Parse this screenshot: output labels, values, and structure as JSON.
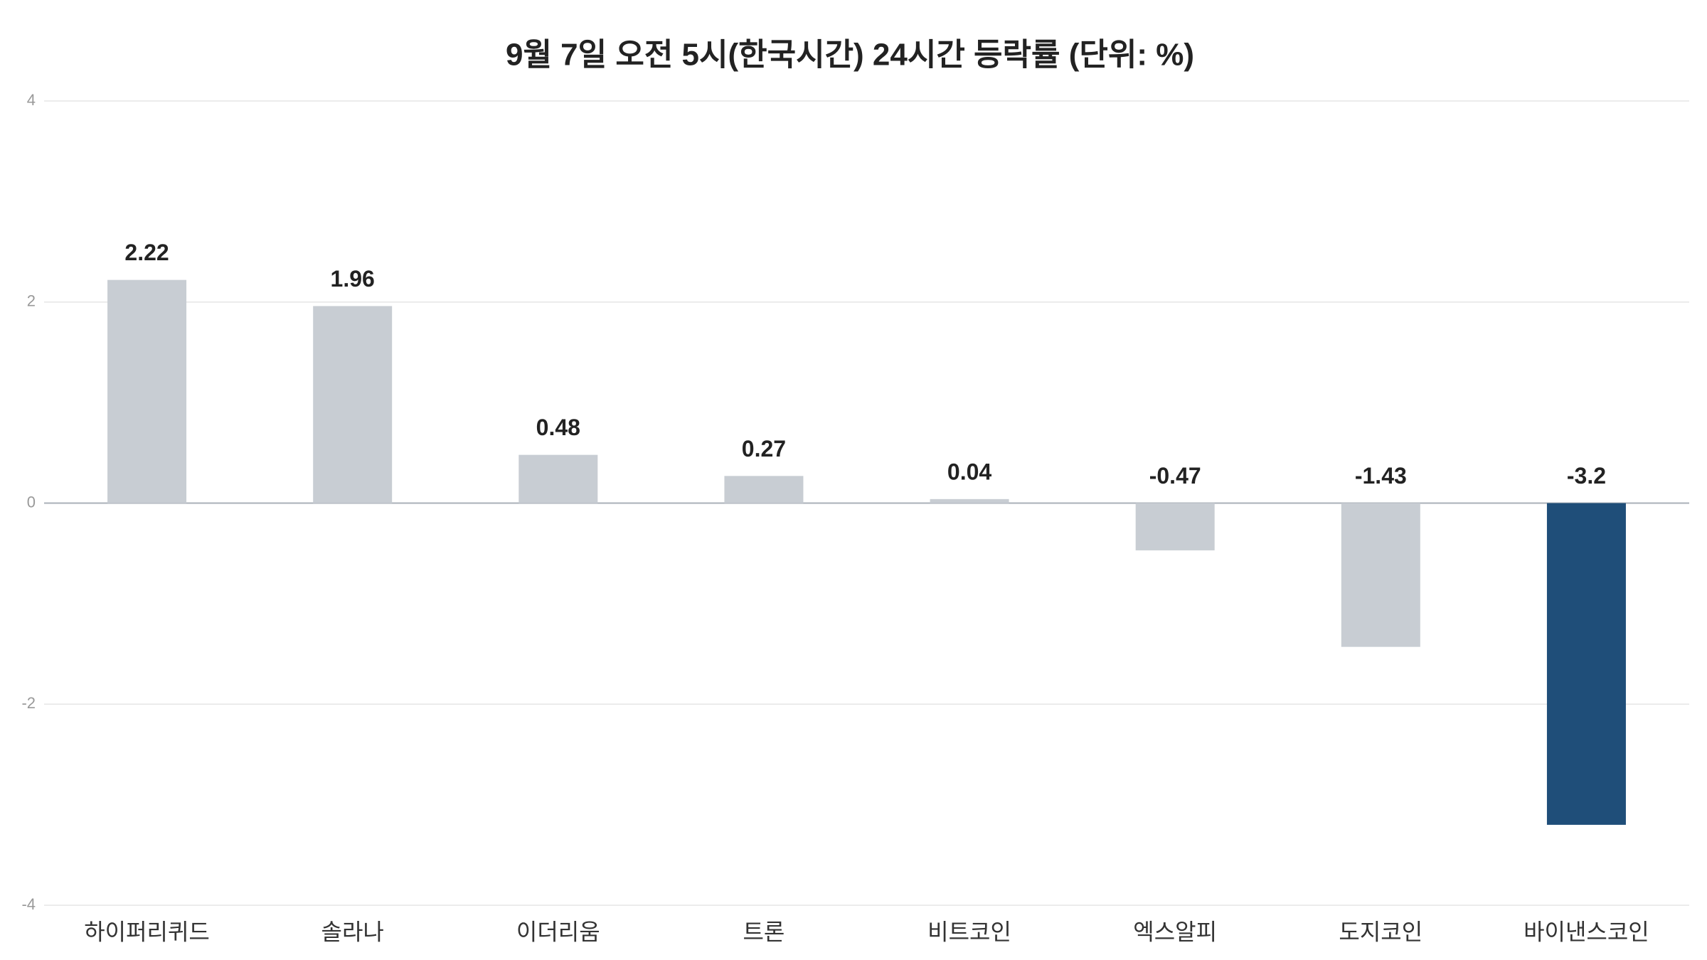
{
  "chart_data": {
    "type": "bar",
    "title": "9월 7일 오전 5시(한국시간) 24시간 등락률 (단위: %)",
    "categories": [
      "하이퍼리퀴드",
      "솔라나",
      "이더리움",
      "트론",
      "비트코인",
      "엑스알피",
      "도지코인",
      "바이낸스코인"
    ],
    "values": [
      2.22,
      1.96,
      0.48,
      0.27,
      0.04,
      -0.47,
      -1.43,
      -3.2
    ],
    "colors": [
      "#c8cdd3",
      "#c8cdd3",
      "#c8cdd3",
      "#c8cdd3",
      "#c8cdd3",
      "#c8cdd3",
      "#c8cdd3",
      "#1f4e79"
    ],
    "ylim": [
      -4,
      4
    ],
    "yticks": [
      -4,
      -2,
      0,
      2,
      4
    ],
    "grid": true
  }
}
